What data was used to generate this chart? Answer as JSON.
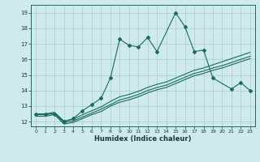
{
  "xlabel": "Humidex (Indice chaleur)",
  "bg_color": "#ceeaea",
  "grid_color": "#a8cccc",
  "line_color": "#1a6b5a",
  "xlim": [
    -0.5,
    23.5
  ],
  "ylim": [
    11.7,
    19.5
  ],
  "yticks": [
    12,
    13,
    14,
    15,
    16,
    17,
    18,
    19
  ],
  "xticks": [
    0,
    1,
    2,
    3,
    4,
    5,
    6,
    7,
    8,
    9,
    10,
    11,
    12,
    13,
    14,
    15,
    16,
    17,
    18,
    19,
    20,
    21,
    22,
    23
  ],
  "series1_x": [
    0,
    1,
    2,
    3,
    4,
    5,
    6,
    7,
    8,
    9,
    10,
    11,
    12,
    13,
    15,
    16,
    17,
    18,
    19,
    21,
    22,
    23
  ],
  "series1_y": [
    12.5,
    12.5,
    12.5,
    12.0,
    12.2,
    12.7,
    13.1,
    13.5,
    14.8,
    17.3,
    16.9,
    16.8,
    17.4,
    16.5,
    19.0,
    18.1,
    16.5,
    16.6,
    14.8,
    14.1,
    14.5,
    14.0
  ],
  "series2_x": [
    0,
    1,
    2,
    3,
    4,
    5,
    6,
    7,
    8,
    9,
    10,
    11,
    12,
    13,
    14,
    15,
    16,
    17,
    18,
    19,
    20,
    21,
    22,
    23
  ],
  "series2_y": [
    12.5,
    12.5,
    12.6,
    12.05,
    12.15,
    12.45,
    12.7,
    12.95,
    13.3,
    13.6,
    13.75,
    13.95,
    14.2,
    14.4,
    14.55,
    14.8,
    15.05,
    15.3,
    15.45,
    15.65,
    15.85,
    16.05,
    16.25,
    16.45
  ],
  "series3_x": [
    0,
    1,
    2,
    3,
    4,
    5,
    6,
    7,
    8,
    9,
    10,
    11,
    12,
    13,
    14,
    15,
    16,
    17,
    18,
    19,
    20,
    21,
    22,
    23
  ],
  "series3_y": [
    12.45,
    12.45,
    12.55,
    11.95,
    12.05,
    12.3,
    12.55,
    12.8,
    13.1,
    13.4,
    13.55,
    13.75,
    14.0,
    14.2,
    14.35,
    14.6,
    14.85,
    15.1,
    15.25,
    15.45,
    15.6,
    15.8,
    16.0,
    16.2
  ],
  "series4_x": [
    0,
    1,
    2,
    3,
    4,
    5,
    6,
    7,
    8,
    9,
    10,
    11,
    12,
    13,
    14,
    15,
    16,
    17,
    18,
    19,
    20,
    21,
    22,
    23
  ],
  "series4_y": [
    12.35,
    12.35,
    12.45,
    11.85,
    11.95,
    12.2,
    12.45,
    12.65,
    13.0,
    13.25,
    13.4,
    13.6,
    13.85,
    14.05,
    14.2,
    14.45,
    14.7,
    14.95,
    15.1,
    15.3,
    15.45,
    15.65,
    15.85,
    16.05
  ]
}
